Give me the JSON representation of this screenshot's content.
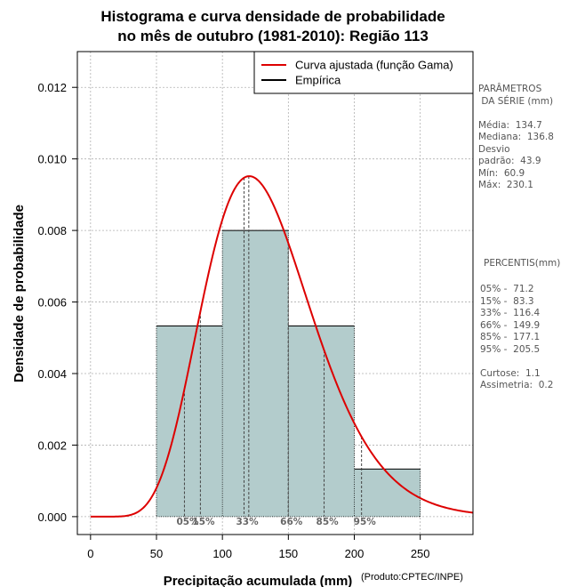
{
  "chart_data": {
    "type": "histogram",
    "title_line1": "Histograma e curva densidade de probabilidade",
    "title_line2": "no mês de outubro (1981-2010): Região 113",
    "xlabel": "Precipitação acumulada (mm)",
    "ylabel": "Densidade de probabilidade",
    "credit": "(Produto:CPTEC/INPE)",
    "xlim": [
      -10,
      290
    ],
    "ylim": [
      -0.0005,
      0.013
    ],
    "x_ticks": [
      0,
      50,
      100,
      150,
      200,
      250
    ],
    "y_ticks": [
      0.0,
      0.002,
      0.004,
      0.006,
      0.008,
      0.01,
      0.012
    ],
    "y_tick_labels": [
      "0.000",
      "0.002",
      "0.004",
      "0.006",
      "0.008",
      "0.010",
      "0.012"
    ],
    "grid": true,
    "bins": [
      {
        "from": 50,
        "to": 100,
        "density": 0.00533
      },
      {
        "from": 100,
        "to": 150,
        "density": 0.008
      },
      {
        "from": 150,
        "to": 200,
        "density": 0.00533
      },
      {
        "from": 200,
        "to": 250,
        "density": 0.00133
      }
    ],
    "bar_color": "#b3cccc",
    "curve_color": "#dd0000",
    "gamma_fit": {
      "mean": 134.7,
      "sd": 43.9
    },
    "percentile_markers": [
      {
        "label": "05%",
        "x": 71.2
      },
      {
        "label": "15%",
        "x": 83.3
      },
      {
        "label": "33%",
        "x": 116.4
      },
      {
        "label": "66%",
        "x": 149.9
      },
      {
        "label": "85%",
        "x": 177.1
      },
      {
        "label": "95%",
        "x": 205.5
      }
    ],
    "mode_marker_x": 120,
    "legend": [
      {
        "label": "Curva ajustada (função Gama)",
        "color": "#dd0000"
      },
      {
        "label": "Empírica",
        "color": "#000000"
      }
    ],
    "legend_position": "top-right"
  },
  "stats": {
    "heading1": "PARÂMETROS",
    "heading2": " DA SÉRIE (mm)",
    "media": "Média:  134.7",
    "mediana": "Mediana:  136.8",
    "desvio1": "Desvio",
    "desvio2": "padrão:  43.9",
    "min": "Mín:  60.9",
    "max": "Máx:  230.1"
  },
  "percentis": {
    "heading": "PERCENTIS(mm)",
    "p05": "05% -  71.2",
    "p15": "15% -  83.3",
    "p33": "33% -  116.4",
    "p66": "66% -  149.9",
    "p85": "85% -  177.1",
    "p95": "95% -  205.5",
    "curtose": "Curtose:  1.1",
    "assimetria": "Assimetria:  0.2"
  }
}
